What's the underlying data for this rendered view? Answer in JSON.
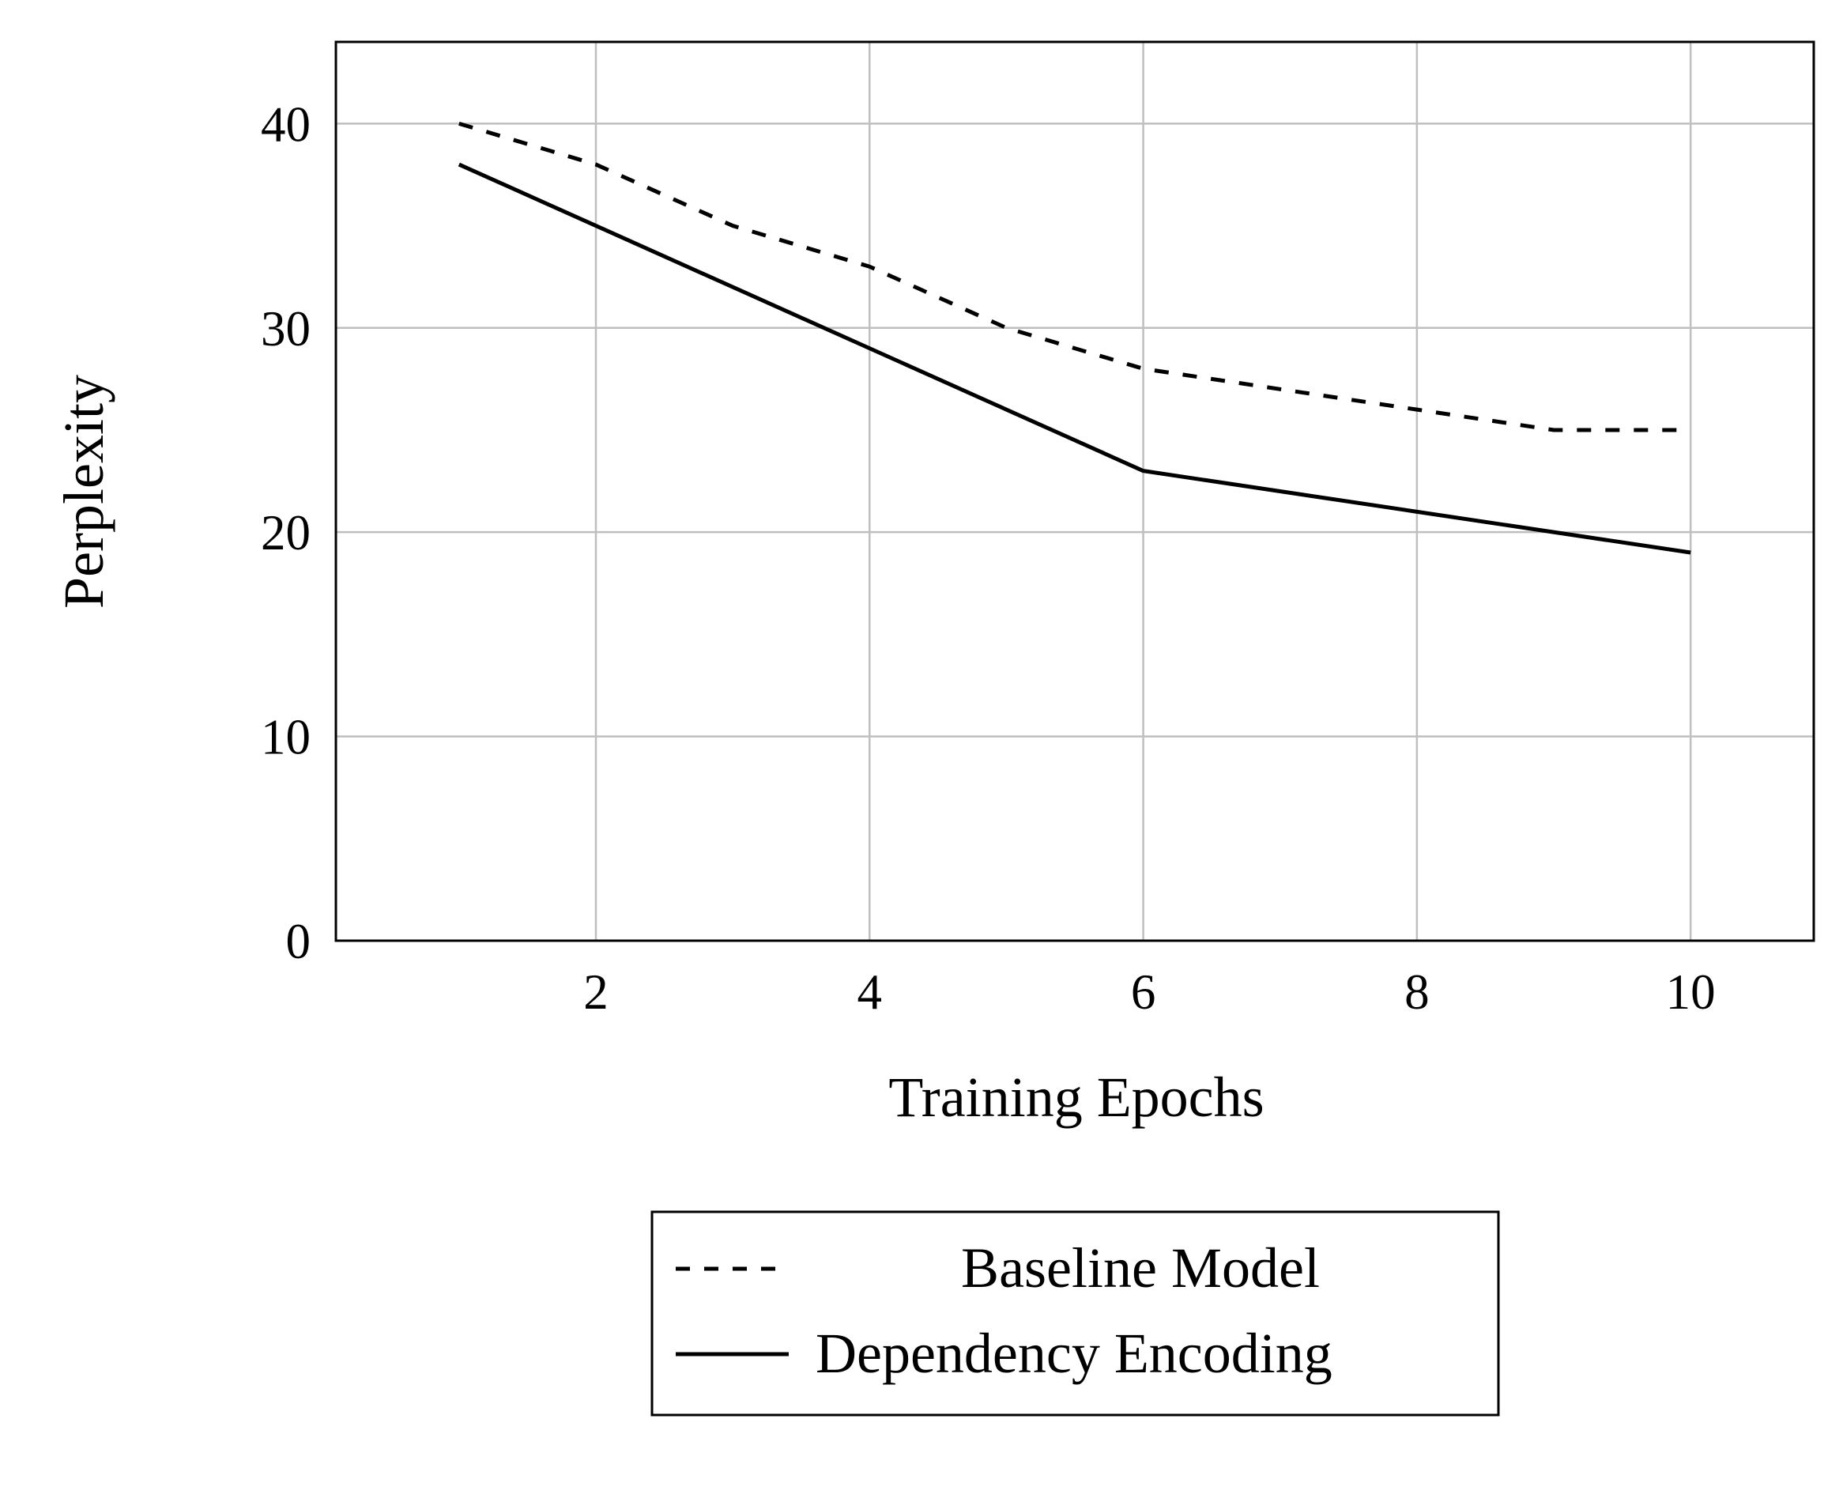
{
  "chart_data": {
    "type": "line",
    "xlabel": "Training Epochs",
    "ylabel": "Perplexity",
    "xlim": [
      0.1,
      10.9
    ],
    "ylim": [
      0,
      44
    ],
    "xticks": [
      2,
      4,
      6,
      8,
      10
    ],
    "yticks": [
      0,
      10,
      20,
      30,
      40
    ],
    "grid": true,
    "legend_placement": "bottom-outside",
    "series": [
      {
        "name": "Baseline Model",
        "style": "dashed",
        "color": "#000000",
        "x": [
          1,
          2,
          3,
          4,
          5,
          6,
          7,
          8,
          9,
          10
        ],
        "y": [
          40,
          38,
          35,
          33,
          30,
          28,
          27,
          26,
          25,
          25
        ]
      },
      {
        "name": "Dependency Encoding",
        "style": "solid",
        "color": "#000000",
        "x": [
          1,
          2,
          4,
          6,
          8,
          10
        ],
        "y": [
          38,
          35,
          29,
          23,
          21,
          19
        ]
      }
    ]
  }
}
